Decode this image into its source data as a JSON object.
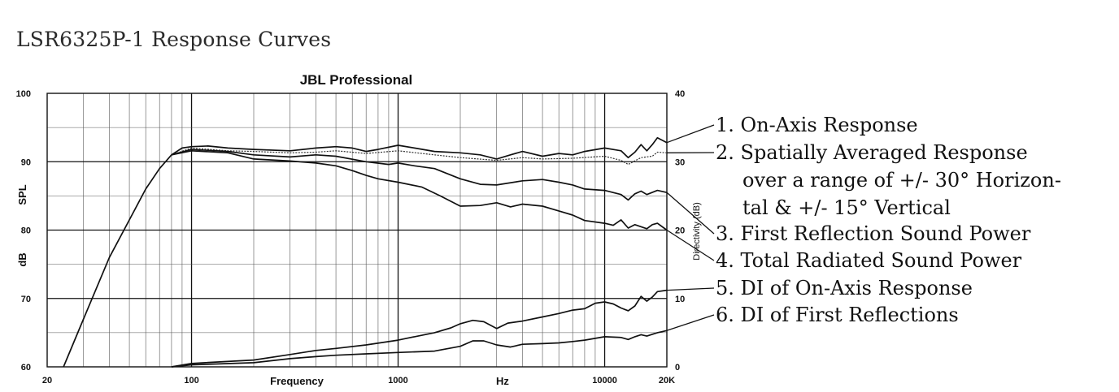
{
  "page_title": "LSR6325P-1 Response Curves",
  "chart_data": {
    "type": "line",
    "title": "JBL Professional",
    "xlabel": "Frequency",
    "xlabel_unit": "Hz",
    "ylabel_parts": [
      "SPL",
      "dB"
    ],
    "y2label": "Directivity (dB)",
    "x_scale": "log",
    "xlim": [
      20,
      20000
    ],
    "ylim": [
      60,
      100
    ],
    "y2lim": [
      0,
      40
    ],
    "x_ticks": [
      {
        "value": 20,
        "label": "20"
      },
      {
        "value": 100,
        "label": "100"
      },
      {
        "value": 1000,
        "label": "1000"
      },
      {
        "value": 10000,
        "label": "10000"
      },
      {
        "value": 20000,
        "label": "20K"
      }
    ],
    "y_ticks": [
      {
        "value": 100,
        "label": "100"
      },
      {
        "value": 90,
        "label": "90"
      },
      {
        "value": 80,
        "label": "80"
      },
      {
        "value": 70,
        "label": "70"
      },
      {
        "value": 60,
        "label": "60"
      }
    ],
    "y2_ticks": [
      {
        "value": 40,
        "label": "40"
      },
      {
        "value": 30,
        "label": "30"
      },
      {
        "value": 20,
        "label": "20"
      },
      {
        "value": 10,
        "label": "10"
      },
      {
        "value": 0,
        "label": "0"
      }
    ],
    "grid": true,
    "series": [
      {
        "key": "on_axis",
        "axis": "left",
        "style": "solid",
        "points": [
          [
            24,
            60
          ],
          [
            30,
            67
          ],
          [
            40,
            76
          ],
          [
            50,
            81.5
          ],
          [
            60,
            86
          ],
          [
            70,
            89
          ],
          [
            80,
            91
          ],
          [
            90,
            92
          ],
          [
            100,
            92.2
          ],
          [
            120,
            92.3
          ],
          [
            150,
            92
          ],
          [
            200,
            91.8
          ],
          [
            300,
            91.6
          ],
          [
            400,
            92
          ],
          [
            500,
            92.2
          ],
          [
            600,
            92
          ],
          [
            700,
            91.5
          ],
          [
            800,
            91.8
          ],
          [
            1000,
            92.4
          ],
          [
            1200,
            92
          ],
          [
            1500,
            91.5
          ],
          [
            2000,
            91.3
          ],
          [
            2500,
            91
          ],
          [
            3000,
            90.4
          ],
          [
            3500,
            91
          ],
          [
            4000,
            91.5
          ],
          [
            5000,
            90.8
          ],
          [
            6000,
            91.2
          ],
          [
            7000,
            91
          ],
          [
            8000,
            91.5
          ],
          [
            10000,
            92
          ],
          [
            12000,
            91.6
          ],
          [
            13000,
            90.6
          ],
          [
            14000,
            91.4
          ],
          [
            15000,
            92.5
          ],
          [
            16000,
            91.6
          ],
          [
            17000,
            92.5
          ],
          [
            18000,
            93.5
          ],
          [
            20000,
            92.8
          ]
        ]
      },
      {
        "key": "spatially_averaged",
        "axis": "left",
        "style": "dotted",
        "points": [
          [
            80,
            91
          ],
          [
            100,
            92
          ],
          [
            150,
            91.6
          ],
          [
            200,
            91.5
          ],
          [
            300,
            91.3
          ],
          [
            400,
            91.4
          ],
          [
            500,
            91.6
          ],
          [
            700,
            91.2
          ],
          [
            1000,
            91.6
          ],
          [
            1500,
            91
          ],
          [
            2000,
            90.6
          ],
          [
            3000,
            90.2
          ],
          [
            4000,
            90.6
          ],
          [
            5000,
            90.4
          ],
          [
            7000,
            90.5
          ],
          [
            10000,
            90.8
          ],
          [
            12000,
            90.2
          ],
          [
            13000,
            89.6
          ],
          [
            15000,
            90.6
          ],
          [
            17000,
            90.8
          ],
          [
            18000,
            91.4
          ],
          [
            20000,
            91.3
          ]
        ]
      },
      {
        "key": "first_reflection",
        "axis": "left",
        "style": "solid",
        "points": [
          [
            80,
            91
          ],
          [
            100,
            91.8
          ],
          [
            150,
            91.5
          ],
          [
            200,
            91
          ],
          [
            300,
            90.7
          ],
          [
            400,
            91
          ],
          [
            500,
            90.8
          ],
          [
            700,
            90
          ],
          [
            900,
            89.6
          ],
          [
            1000,
            89.8
          ],
          [
            1200,
            89.4
          ],
          [
            1500,
            89
          ],
          [
            2000,
            87.5
          ],
          [
            2500,
            86.7
          ],
          [
            3000,
            86.6
          ],
          [
            4000,
            87.2
          ],
          [
            5000,
            87.4
          ],
          [
            6000,
            87
          ],
          [
            7000,
            86.6
          ],
          [
            8000,
            86
          ],
          [
            10000,
            85.8
          ],
          [
            12000,
            85.2
          ],
          [
            13000,
            84.4
          ],
          [
            14000,
            85.3
          ],
          [
            15000,
            85.7
          ],
          [
            16000,
            85.2
          ],
          [
            18000,
            85.8
          ],
          [
            20000,
            85.5
          ]
        ]
      },
      {
        "key": "total_radiated",
        "axis": "left",
        "style": "solid",
        "points": [
          [
            80,
            91
          ],
          [
            100,
            91.6
          ],
          [
            150,
            91.3
          ],
          [
            200,
            90.4
          ],
          [
            300,
            90.1
          ],
          [
            400,
            89.8
          ],
          [
            500,
            89.4
          ],
          [
            600,
            88.7
          ],
          [
            700,
            88
          ],
          [
            800,
            87.5
          ],
          [
            1000,
            87
          ],
          [
            1300,
            86.3
          ],
          [
            1600,
            85
          ],
          [
            2000,
            83.5
          ],
          [
            2500,
            83.6
          ],
          [
            3000,
            84
          ],
          [
            3500,
            83.4
          ],
          [
            4000,
            83.8
          ],
          [
            5000,
            83.5
          ],
          [
            6000,
            82.8
          ],
          [
            7000,
            82.2
          ],
          [
            8000,
            81.4
          ],
          [
            10000,
            81
          ],
          [
            11000,
            80.7
          ],
          [
            12000,
            81.5
          ],
          [
            13000,
            80.3
          ],
          [
            14000,
            80.8
          ],
          [
            16000,
            80.2
          ],
          [
            17000,
            80.8
          ],
          [
            18000,
            81
          ],
          [
            20000,
            80
          ]
        ]
      },
      {
        "key": "di_on_axis",
        "axis": "right",
        "style": "solid",
        "points": [
          [
            80,
            0
          ],
          [
            100,
            0.5
          ],
          [
            200,
            1
          ],
          [
            300,
            1.8
          ],
          [
            400,
            2.4
          ],
          [
            500,
            2.7
          ],
          [
            700,
            3.2
          ],
          [
            1000,
            3.9
          ],
          [
            1200,
            4.4
          ],
          [
            1500,
            5
          ],
          [
            1800,
            5.7
          ],
          [
            2000,
            6.3
          ],
          [
            2300,
            6.8
          ],
          [
            2600,
            6.6
          ],
          [
            3000,
            5.6
          ],
          [
            3400,
            6.4
          ],
          [
            4000,
            6.7
          ],
          [
            5000,
            7.3
          ],
          [
            6000,
            7.8
          ],
          [
            7000,
            8.3
          ],
          [
            8000,
            8.5
          ],
          [
            9000,
            9.3
          ],
          [
            10000,
            9.5
          ],
          [
            11000,
            9.2
          ],
          [
            12000,
            8.6
          ],
          [
            13000,
            8.2
          ],
          [
            14000,
            8.9
          ],
          [
            15000,
            10.3
          ],
          [
            16000,
            9.6
          ],
          [
            17000,
            10.2
          ],
          [
            18000,
            11
          ],
          [
            20000,
            11.2
          ]
        ]
      },
      {
        "key": "di_first_reflections",
        "axis": "right",
        "style": "solid",
        "points": [
          [
            80,
            0
          ],
          [
            100,
            0.3
          ],
          [
            200,
            0.6
          ],
          [
            300,
            1.2
          ],
          [
            400,
            1.5
          ],
          [
            500,
            1.7
          ],
          [
            700,
            1.9
          ],
          [
            1000,
            2.1
          ],
          [
            1500,
            2.3
          ],
          [
            2000,
            3
          ],
          [
            2300,
            3.8
          ],
          [
            2600,
            3.8
          ],
          [
            3000,
            3.2
          ],
          [
            3500,
            2.9
          ],
          [
            4000,
            3.3
          ],
          [
            5000,
            3.4
          ],
          [
            6000,
            3.5
          ],
          [
            7000,
            3.7
          ],
          [
            8000,
            3.9
          ],
          [
            10000,
            4.4
          ],
          [
            12000,
            4.3
          ],
          [
            13000,
            4
          ],
          [
            14000,
            4.4
          ],
          [
            15000,
            4.7
          ],
          [
            16000,
            4.5
          ],
          [
            18000,
            5
          ],
          [
            20000,
            5.3
          ]
        ]
      }
    ],
    "legend": [
      {
        "id": 1,
        "lines": [
          "1. On-Axis Response"
        ]
      },
      {
        "id": 2,
        "lines": [
          "2. Spatially Averaged Response",
          "over a range of +/- 30° Horizon-",
          "tal & +/- 15° Vertical"
        ]
      },
      {
        "id": 3,
        "lines": [
          "3. First Reflection Sound Power"
        ]
      },
      {
        "id": 4,
        "lines": [
          "4. Total Radiated Sound Power"
        ]
      },
      {
        "id": 5,
        "lines": [
          "5. DI of On-Axis Response"
        ]
      },
      {
        "id": 6,
        "lines": [
          "6. DI of First Reflections"
        ]
      }
    ]
  }
}
